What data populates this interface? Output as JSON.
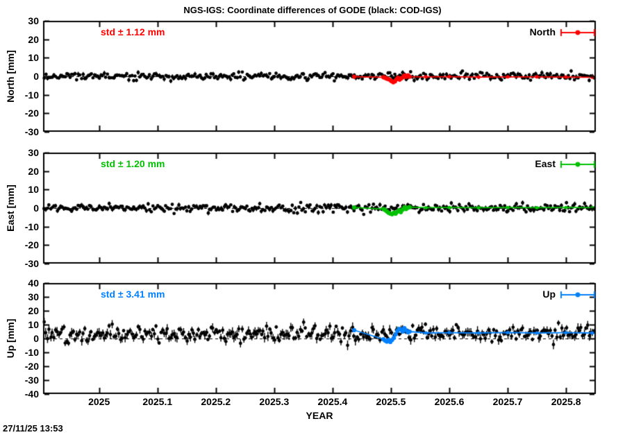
{
  "title": "NGS-IGS: Coordinate differences of GODE (black: COD-IGS)",
  "timestamp": "27/11/25 13:53",
  "chart_data": {
    "type": "scatter",
    "title": "NGS-IGS: Coordinate differences of GODE (black: COD-IGS)",
    "xlabel": "YEAR",
    "x_range": [
      2024.904,
      2025.851
    ],
    "x_ticks": [
      2025,
      2025.1,
      2025.2,
      2025.3,
      2025.4,
      2025.5,
      2025.6,
      2025.7,
      2025.8
    ],
    "x_tick_labels": [
      "2025",
      "2025.1",
      "2025.2",
      "2025.3",
      "2025.4",
      "2025.5",
      "2025.6",
      "2025.7",
      "2025.8"
    ],
    "grid": false,
    "legend_position": "top-right-inside",
    "black_series_label": "COD-IGS",
    "panels": [
      {
        "name": "North",
        "ylabel": "North [mm]",
        "ylim": [
          -30,
          30
        ],
        "y_ticks": [
          30,
          20,
          10,
          0,
          -10,
          -20,
          -30
        ],
        "std_label": "std ± 1.12 mm",
        "legend_label": "North",
        "color": "#ff0000",
        "black_series": {
          "label": "COD-IGS",
          "n_points": 340,
          "approx_mean_mm": 0,
          "trend_mm_per_yr": 0,
          "approx_std_mm": 1.0,
          "clamp_mm": [
            -4,
            4
          ],
          "errbar_mm": 0.9,
          "seed": 11
        },
        "ngs_points": [
          [
            2025.437,
            -0.2
          ],
          [
            2025.487,
            -0.5
          ],
          [
            2025.49,
            -0.8
          ],
          [
            2025.493,
            -1.3
          ],
          [
            2025.496,
            -1.6
          ],
          [
            2025.499,
            -2.1
          ],
          [
            2025.501,
            -2.6
          ],
          [
            2025.504,
            -3.2
          ],
          [
            2025.507,
            -2.7
          ],
          [
            2025.51,
            -1.5
          ],
          [
            2025.512,
            -0.8
          ],
          [
            2025.515,
            -1.8
          ],
          [
            2025.518,
            -1.0
          ],
          [
            2025.521,
            -0.4
          ],
          [
            2025.523,
            0.4
          ],
          [
            2025.526,
            -0.3
          ],
          [
            2025.529,
            0.5
          ],
          [
            2025.532,
            -0.2
          ],
          [
            2025.56,
            -0.3
          ],
          [
            2025.6,
            -0.2
          ],
          [
            2025.65,
            -0.4
          ],
          [
            2025.7,
            -0.3
          ],
          [
            2025.75,
            -0.3
          ],
          [
            2025.8,
            -0.4
          ],
          [
            2025.845,
            -0.5
          ]
        ]
      },
      {
        "name": "East",
        "ylabel": "East [mm]",
        "ylim": [
          -30,
          30
        ],
        "y_ticks": [
          30,
          20,
          10,
          0,
          -10,
          -20,
          -30
        ],
        "std_label": "std ± 1.20 mm",
        "legend_label": "East",
        "color": "#00c000",
        "black_series": {
          "label": "COD-IGS",
          "n_points": 340,
          "approx_mean_mm": 0,
          "trend_mm_per_yr": 0,
          "approx_std_mm": 1.1,
          "clamp_mm": [
            -4,
            4
          ],
          "errbar_mm": 0.9,
          "seed": 23
        },
        "ngs_points": [
          [
            2025.437,
            0.3
          ],
          [
            2025.487,
            -0.5
          ],
          [
            2025.49,
            -1.0
          ],
          [
            2025.493,
            -1.8
          ],
          [
            2025.496,
            -2.5
          ],
          [
            2025.499,
            -3.0
          ],
          [
            2025.502,
            -3.3
          ],
          [
            2025.505,
            -2.5
          ],
          [
            2025.508,
            -3.0
          ],
          [
            2025.511,
            -2.0
          ],
          [
            2025.514,
            -1.2
          ],
          [
            2025.517,
            -2.2
          ],
          [
            2025.52,
            -0.8
          ],
          [
            2025.523,
            0.4
          ],
          [
            2025.526,
            -0.5
          ],
          [
            2025.529,
            0.2
          ],
          [
            2025.532,
            0.5
          ],
          [
            2025.56,
            0.2
          ],
          [
            2025.6,
            0.3
          ],
          [
            2025.65,
            0.2
          ],
          [
            2025.7,
            0.3
          ],
          [
            2025.75,
            0.2
          ],
          [
            2025.8,
            0.3
          ],
          [
            2025.845,
            0.2
          ]
        ]
      },
      {
        "name": "Up",
        "ylabel": "Up [mm]",
        "ylim": [
          -40,
          40
        ],
        "y_ticks": [
          40,
          30,
          20,
          10,
          0,
          -10,
          -20,
          -30,
          -40
        ],
        "std_label": "std ± 3.41 mm",
        "legend_label": "Up",
        "color": "#0080ff",
        "black_series": {
          "label": "COD-IGS",
          "n_points": 340,
          "approx_mean_mm": 3.5,
          "trend_mm_per_yr": 2.1,
          "approx_std_mm": 2.8,
          "clamp_mm": [
            -6,
            12
          ],
          "errbar_mm": 2.4,
          "seed": 37
        },
        "ngs_points": [
          [
            2025.437,
            6.0
          ],
          [
            2025.487,
            -0.5
          ],
          [
            2025.49,
            -1.5
          ],
          [
            2025.493,
            -2.2
          ],
          [
            2025.496,
            -1.0
          ],
          [
            2025.499,
            -2.5
          ],
          [
            2025.502,
            -1.0
          ],
          [
            2025.505,
            0.5
          ],
          [
            2025.508,
            3.0
          ],
          [
            2025.511,
            5.5
          ],
          [
            2025.514,
            7.0
          ],
          [
            2025.517,
            6.5
          ],
          [
            2025.52,
            5.0
          ],
          [
            2025.523,
            7.5
          ],
          [
            2025.526,
            6.0
          ],
          [
            2025.529,
            4.5
          ],
          [
            2025.532,
            5.0
          ],
          [
            2025.56,
            4.0
          ],
          [
            2025.6,
            4.2
          ],
          [
            2025.65,
            4.0
          ],
          [
            2025.7,
            4.3
          ],
          [
            2025.75,
            4.0
          ],
          [
            2025.8,
            4.2
          ],
          [
            2025.845,
            4.0
          ]
        ]
      }
    ]
  }
}
